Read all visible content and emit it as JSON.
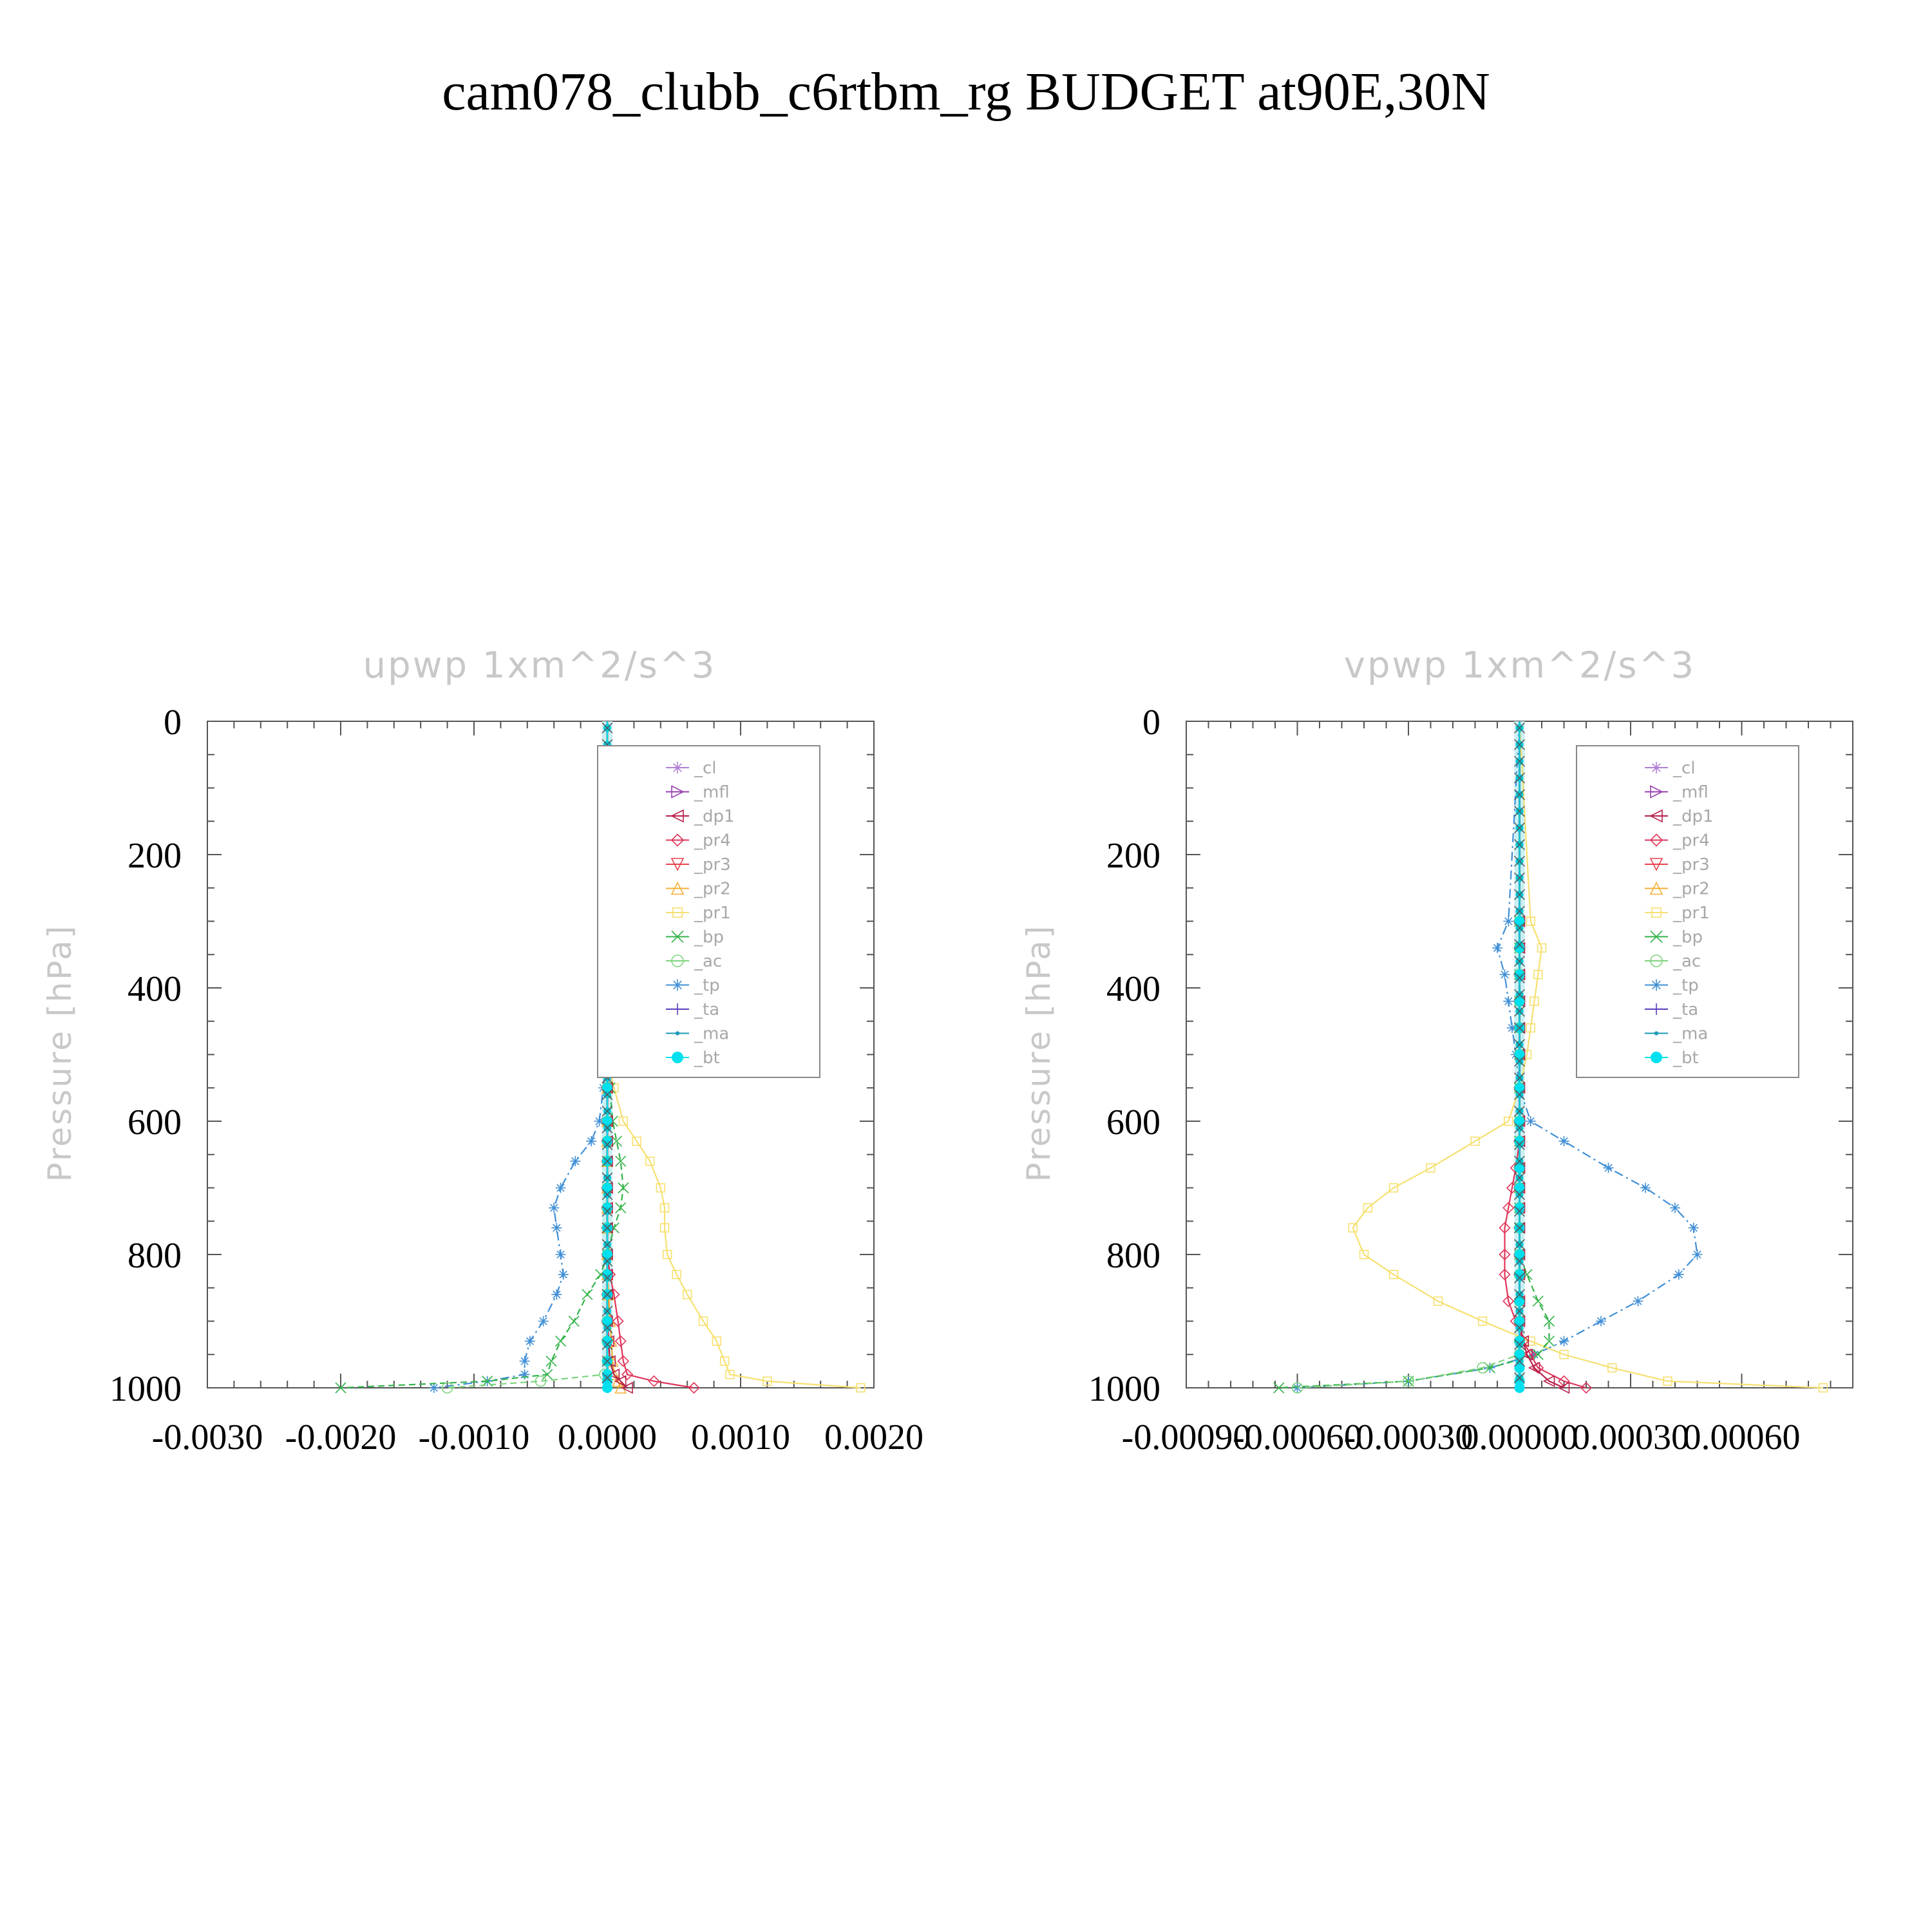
{
  "title": "cam078_clubb_c6rtbm_rg  BUDGET at90E,30N",
  "legend_entries": [
    "_cl",
    "_mfl",
    "_dp1",
    "_pr4",
    "_pr3",
    "_pr2",
    "_pr1",
    "_bp",
    "_ac",
    "_tp",
    "_ta",
    "_ma",
    "_bt"
  ],
  "series_colors": {
    "_cl": "#b07fd6",
    "_mfl": "#9a3fb0",
    "_dp1": "#b8204a",
    "_pr4": "#e0365a",
    "_pr3": "#e8424e",
    "_pr2": "#f2b035",
    "_pr1": "#f6e070",
    "_bp": "#34b34a",
    "_ac": "#7ed37e",
    "_tp": "#3f8fd6",
    "_ta": "#5a3fbf",
    "_ma": "#1a9ab8",
    "_bt": "#00e0ee"
  },
  "legend_markers": {
    "_cl": "star-icon",
    "_mfl": "triangle-right-icon",
    "_dp1": "triangle-left-icon",
    "_pr4": "diamond-icon",
    "_pr3": "triangle-down-icon",
    "_pr2": "triangle-up-icon",
    "_pr1": "square-icon",
    "_bp": "x-icon",
    "_ac": "circle-icon",
    "_tp": "asterisk-icon",
    "_ta": "plus-icon",
    "_ma": "dot-icon",
    "_bt": "filled-circle-icon"
  },
  "chart_data": [
    {
      "type": "line",
      "title": "upwp   1xm^2/s^3",
      "ylabel": "Pressure [hPa]",
      "xlabel": "",
      "xlim": [
        -0.003,
        0.002
      ],
      "ylim": [
        1000,
        0
      ],
      "y_inverted": true,
      "xticks": [
        "-0.0030",
        "-0.0020",
        "-0.0010",
        "0.0000",
        "0.0010",
        "0.0020"
      ],
      "yticks": [
        "0",
        "200",
        "400",
        "600",
        "800",
        "1000"
      ],
      "legend_position": "top-right",
      "pressure_levels": [
        500,
        550,
        600,
        630,
        660,
        700,
        730,
        760,
        800,
        830,
        860,
        900,
        930,
        960,
        980,
        990,
        1000
      ],
      "series": [
        {
          "name": "_tp",
          "values": [
            0,
            -3e-05,
            -6e-05,
            -0.00012,
            -0.00024,
            -0.00035,
            -0.0004,
            -0.00038,
            -0.00035,
            -0.00033,
            -0.00038,
            -0.00048,
            -0.00058,
            -0.00062,
            -0.00062,
            -0.0009,
            -0.0013
          ]
        },
        {
          "name": "_pr1",
          "values": [
            0,
            5e-05,
            0.00012,
            0.00022,
            0.00032,
            0.0004,
            0.00043,
            0.00043,
            0.00045,
            0.00052,
            0.0006,
            0.00072,
            0.00082,
            0.00088,
            0.00092,
            0.0012,
            0.0019
          ]
        },
        {
          "name": "_bp",
          "values": [
            0,
            2e-05,
            4e-05,
            7e-05,
            0.0001,
            0.00012,
            0.0001,
            5e-05,
            0,
            -5e-05,
            -0.00015,
            -0.00025,
            -0.00035,
            -0.00042,
            -0.00045,
            -0.0009,
            -0.002
          ]
        },
        {
          "name": "_ac",
          "values": [
            0,
            0,
            0,
            0,
            0,
            0,
            0,
            0,
            0,
            0,
            0,
            0,
            0,
            0,
            -2e-05,
            -0.0005,
            -0.0012
          ]
        },
        {
          "name": "_pr4",
          "values": [
            0,
            0,
            0,
            0,
            0,
            0,
            0,
            0,
            0,
            2e-05,
            5e-05,
            8e-05,
            0.0001,
            0.00012,
            0.00015,
            0.00035,
            0.00065
          ]
        },
        {
          "name": "_pr2",
          "values": [
            0,
            0,
            0,
            0,
            0,
            0,
            0,
            0,
            0,
            0,
            1e-05,
            2e-05,
            3e-05,
            4e-05,
            5e-05,
            8e-05,
            0.0001
          ]
        },
        {
          "name": "_dp1",
          "values": [
            0,
            0,
            0,
            0,
            0,
            0,
            0,
            0,
            0,
            0,
            0,
            0,
            1e-05,
            2e-05,
            5e-05,
            0.0001,
            0.00015
          ]
        },
        {
          "name": "_bt",
          "values": [
            0,
            0,
            0,
            0,
            0,
            0,
            0,
            0,
            0,
            0,
            0,
            0,
            0,
            0,
            0,
            0,
            0
          ]
        }
      ]
    },
    {
      "type": "line",
      "title": "vpwp   1xm^2/s^3",
      "ylabel": "Pressure [hPa]",
      "xlabel": "",
      "xlim": [
        -0.0009,
        0.0009
      ],
      "ylim": [
        1000,
        0
      ],
      "y_inverted": true,
      "xticks": [
        "-0.00090",
        "-0.00060",
        "-0.00030",
        "0.00000",
        "0.00030",
        "0.00060"
      ],
      "yticks": [
        "0",
        "200",
        "400",
        "600",
        "800",
        "1000"
      ],
      "legend_position": "top-right",
      "pressure_levels": [
        300,
        340,
        380,
        420,
        460,
        500,
        550,
        600,
        630,
        670,
        700,
        730,
        760,
        800,
        830,
        870,
        900,
        930,
        950,
        970,
        990,
        1000
      ],
      "series": [
        {
          "name": "_tp",
          "values": [
            -3e-05,
            -6e-05,
            -4e-05,
            -3e-05,
            -2e-05,
            -1e-05,
            0,
            3e-05,
            0.00012,
            0.00024,
            0.00034,
            0.00042,
            0.00047,
            0.00048,
            0.00043,
            0.00032,
            0.00022,
            0.00012,
            4e-05,
            -8e-05,
            -0.0003,
            -0.0006
          ]
        },
        {
          "name": "_pr1",
          "values": [
            3e-05,
            6e-05,
            5e-05,
            4e-05,
            3e-05,
            2e-05,
            0,
            -3e-05,
            -0.00012,
            -0.00024,
            -0.00034,
            -0.00041,
            -0.00045,
            -0.00042,
            -0.00034,
            -0.00022,
            -0.0001,
            3e-05,
            0.00012,
            0.00025,
            0.0004,
            0.00082
          ]
        },
        {
          "name": "_bp",
          "values": [
            0,
            0,
            0,
            0,
            0,
            0,
            0,
            0,
            0,
            0,
            0,
            0,
            0,
            0,
            2e-05,
            5e-05,
            8e-05,
            8e-05,
            5e-05,
            -8e-05,
            -0.0003,
            -0.00065
          ]
        },
        {
          "name": "_ac",
          "values": [
            0,
            0,
            0,
            0,
            0,
            0,
            0,
            0,
            0,
            0,
            0,
            0,
            0,
            0,
            0,
            0,
            0,
            0,
            0,
            -0.0001,
            -0.0003,
            -0.0006
          ]
        },
        {
          "name": "_pr4",
          "values": [
            0,
            0,
            0,
            0,
            0,
            0,
            0,
            0,
            0,
            -1e-05,
            -2e-05,
            -3e-05,
            -4e-05,
            -4e-05,
            -4e-05,
            -3e-05,
            -1e-05,
            1e-05,
            3e-05,
            5e-05,
            0.00012,
            0.00018
          ]
        },
        {
          "name": "_dp1",
          "values": [
            0,
            0,
            0,
            0,
            0,
            0,
            0,
            0,
            0,
            0,
            0,
            0,
            0,
            0,
            0,
            0,
            0,
            1e-05,
            2e-05,
            4e-05,
            8e-05,
            0.00012
          ]
        },
        {
          "name": "_bt",
          "values": [
            0,
            0,
            0,
            0,
            0,
            0,
            0,
            0,
            0,
            0,
            0,
            0,
            0,
            0,
            0,
            0,
            0,
            0,
            0,
            0,
            0,
            0
          ]
        }
      ]
    }
  ]
}
